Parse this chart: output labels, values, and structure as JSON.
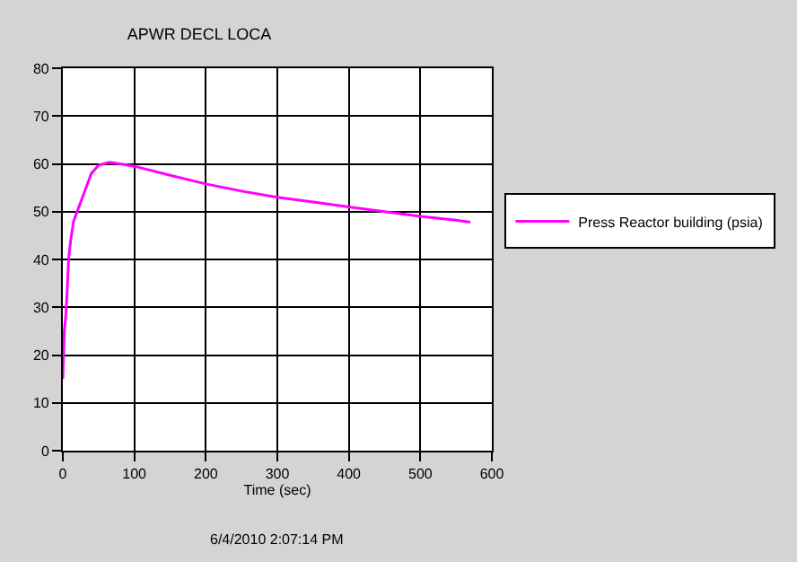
{
  "chart_data": {
    "type": "line",
    "title": "APWR DECL LOCA",
    "xlabel": "Time (sec)",
    "x": [
      0,
      1,
      2,
      4,
      6,
      8,
      11,
      15,
      20,
      25,
      30,
      40,
      50,
      65,
      80,
      100,
      150,
      200,
      250,
      300,
      350,
      400,
      450,
      500,
      550,
      570
    ],
    "series": [
      {
        "name": "Press Reactor building (psia)",
        "color": "#ff00ff",
        "values": [
          15,
          20,
          25,
          28,
          33,
          40,
          44,
          48,
          50,
          52,
          54,
          58,
          59.7,
          60.3,
          60,
          59.5,
          57.6,
          55.8,
          54.3,
          53,
          52,
          51,
          50,
          49,
          48.2,
          47.8
        ]
      }
    ],
    "xlim": [
      0,
      600
    ],
    "xticks": [
      0,
      100,
      200,
      300,
      400,
      500,
      600
    ],
    "ylim": [
      0,
      80
    ],
    "yticks": [
      0,
      10,
      20,
      30,
      40,
      50,
      60,
      70,
      80
    ],
    "grid": true,
    "legend": "right",
    "annotations": [
      "6/4/2010 2:07:14 PM"
    ]
  }
}
